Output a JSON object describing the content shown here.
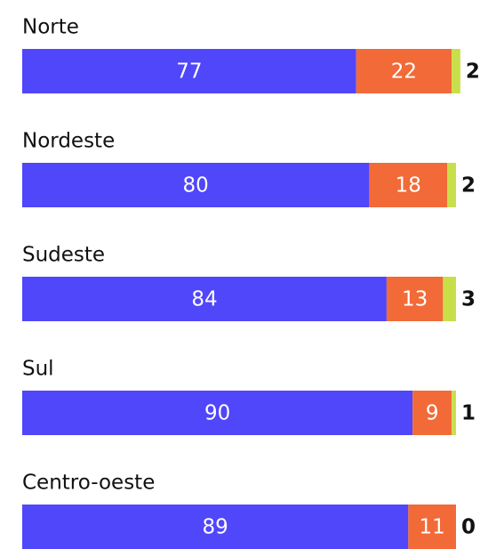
{
  "chart_data": {
    "type": "bar",
    "orientation": "horizontal",
    "stacked": true,
    "categories": [
      "Norte",
      "Nordeste",
      "Sudeste",
      "Sul",
      "Centro-oeste"
    ],
    "series": [
      {
        "color": "#5046fa",
        "values": [
          77,
          80,
          84,
          90,
          89
        ]
      },
      {
        "color": "#f26a38",
        "values": [
          22,
          18,
          13,
          9,
          11
        ]
      },
      {
        "color": "#c9df4a",
        "values": [
          2,
          2,
          3,
          1,
          0
        ]
      }
    ]
  }
}
